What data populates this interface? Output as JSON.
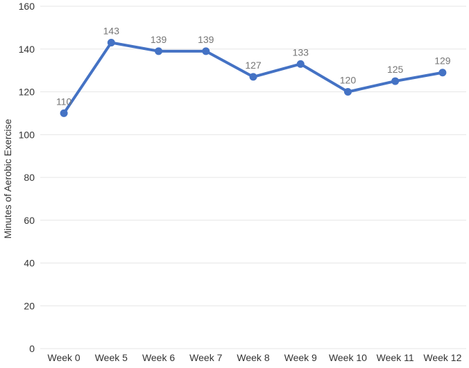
{
  "chart_data": {
    "type": "line",
    "title": "",
    "xlabel": "",
    "ylabel": "Minutes of Aerobic Exercise",
    "categories": [
      "Week 0",
      "Week 5",
      "Week 6",
      "Week 7",
      "Week 8",
      "Week 9",
      "Week 10",
      "Week 11",
      "Week 12"
    ],
    "series": [
      {
        "name": "Minutes of Aerobic Exercise",
        "values": [
          110,
          143,
          139,
          139,
          127,
          133,
          120,
          125,
          129
        ]
      }
    ],
    "point_labels_visible": true,
    "ylim": [
      0,
      160
    ],
    "yticks": [
      0,
      20,
      40,
      60,
      80,
      100,
      120,
      140,
      160
    ],
    "grid": "horizontal",
    "legend": "none",
    "colors": {
      "line": "#4472C4",
      "marker": "#4472C4",
      "point_label": "#757575",
      "axis_text": "#333333",
      "gridline": "#E6E6E6",
      "background": "#FFFFFF"
    }
  }
}
